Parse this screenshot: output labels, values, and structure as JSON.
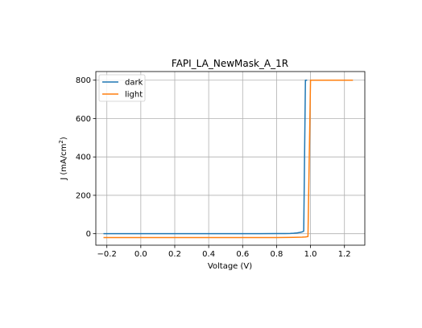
{
  "chart_data": {
    "type": "line",
    "title": "FAPI_LA_NewMask_A_1R",
    "xlabel": "Voltage (V)",
    "ylabel": "J (mA/cm",
    "ylabel_sup": "2",
    "ylabel_close": ")",
    "xlim": [
      -0.265,
      1.32
    ],
    "ylim": [
      -60,
      845
    ],
    "xticks": [
      -0.2,
      0.0,
      0.2,
      0.4,
      0.6,
      0.8,
      1.0,
      1.2
    ],
    "xtick_labels": [
      "−0.2",
      "0.0",
      "0.2",
      "0.4",
      "0.6",
      "0.8",
      "1.0",
      "1.2"
    ],
    "yticks": [
      0,
      200,
      400,
      600,
      800
    ],
    "ytick_labels": [
      "0",
      "200",
      "400",
      "600",
      "800"
    ],
    "grid": true,
    "legend_position": "top-left",
    "series": [
      {
        "name": "dark",
        "color": "#1f77b4",
        "x": [
          -0.22,
          0.0,
          0.2,
          0.4,
          0.6,
          0.7,
          0.8,
          0.85,
          0.88,
          0.9,
          0.92,
          0.94,
          0.95,
          0.96,
          0.97,
          0.98
        ],
        "y": [
          0,
          0,
          0,
          0,
          0,
          0.2,
          0.5,
          1,
          1.5,
          2.5,
          4,
          7,
          9,
          13,
          800,
          800
        ]
      },
      {
        "name": "light",
        "color": "#ff7f0e",
        "x": [
          -0.22,
          0.0,
          0.2,
          0.4,
          0.6,
          0.8,
          0.9,
          0.95,
          0.97,
          0.985,
          1.0,
          1.1,
          1.2,
          1.25
        ],
        "y": [
          -20,
          -20,
          -20,
          -20,
          -20,
          -20,
          -19,
          -18,
          -17,
          -15,
          800,
          800,
          800,
          800
        ]
      }
    ]
  }
}
